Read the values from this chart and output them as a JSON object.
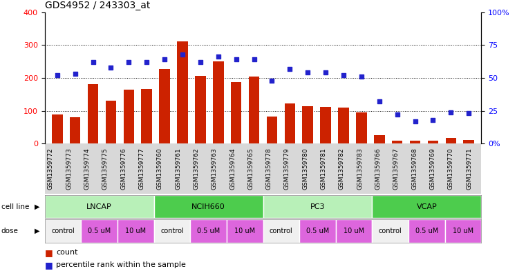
{
  "title": "GDS4952 / 243303_at",
  "samples": [
    "GSM1359772",
    "GSM1359773",
    "GSM1359774",
    "GSM1359775",
    "GSM1359776",
    "GSM1359777",
    "GSM1359760",
    "GSM1359761",
    "GSM1359762",
    "GSM1359763",
    "GSM1359764",
    "GSM1359765",
    "GSM1359778",
    "GSM1359779",
    "GSM1359780",
    "GSM1359781",
    "GSM1359782",
    "GSM1359783",
    "GSM1359766",
    "GSM1359767",
    "GSM1359768",
    "GSM1359769",
    "GSM1359770",
    "GSM1359771"
  ],
  "bar_values": [
    88,
    80,
    182,
    130,
    165,
    167,
    228,
    312,
    207,
    250,
    188,
    205,
    83,
    122,
    113,
    112,
    110,
    95,
    25,
    10,
    10,
    10,
    18,
    12
  ],
  "blue_values": [
    52,
    53,
    62,
    58,
    62,
    62,
    64,
    68,
    62,
    66,
    64,
    64,
    48,
    57,
    54,
    54,
    52,
    51,
    32,
    22,
    17,
    18,
    24,
    23
  ],
  "cell_lines": [
    {
      "label": "LNCAP",
      "start": 0,
      "end": 6,
      "color_light": "#b8f0b8",
      "color_dark": "#60d060"
    },
    {
      "label": "NCIH660",
      "start": 6,
      "end": 12,
      "color_light": "#60d060",
      "color_dark": "#60d060"
    },
    {
      "label": "PC3",
      "start": 12,
      "end": 18,
      "color_light": "#b8f0b8",
      "color_dark": "#60d060"
    },
    {
      "label": "VCAP",
      "start": 18,
      "end": 24,
      "color_light": "#60d060",
      "color_dark": "#60d060"
    }
  ],
  "dose_groups": [
    {
      "label": "control",
      "start": 0,
      "end": 2,
      "bg": "#f0f0f0"
    },
    {
      "label": "0.5 uM",
      "start": 2,
      "end": 4,
      "bg": "#e070e0"
    },
    {
      "label": "10 uM",
      "start": 4,
      "end": 6,
      "bg": "#e070e0"
    },
    {
      "label": "control",
      "start": 6,
      "end": 8,
      "bg": "#f0f0f0"
    },
    {
      "label": "0.5 uM",
      "start": 8,
      "end": 10,
      "bg": "#e070e0"
    },
    {
      "label": "10 uM",
      "start": 10,
      "end": 12,
      "bg": "#e070e0"
    },
    {
      "label": "control",
      "start": 12,
      "end": 14,
      "bg": "#f0f0f0"
    },
    {
      "label": "0.5 uM",
      "start": 14,
      "end": 16,
      "bg": "#e070e0"
    },
    {
      "label": "10 uM",
      "start": 16,
      "end": 18,
      "bg": "#e070e0"
    },
    {
      "label": "control",
      "start": 18,
      "end": 20,
      "bg": "#f0f0f0"
    },
    {
      "label": "0.5 uM",
      "start": 20,
      "end": 22,
      "bg": "#e070e0"
    },
    {
      "label": "10 uM",
      "start": 22,
      "end": 24,
      "bg": "#e070e0"
    }
  ],
  "bar_color": "#cc2200",
  "blue_color": "#2222cc",
  "ylim_left": [
    0,
    400
  ],
  "yticks_left": [
    0,
    100,
    200,
    300,
    400
  ],
  "yticks_right": [
    0,
    25,
    50,
    75,
    100
  ],
  "ytick_labels_right": [
    "0%",
    "25",
    "50",
    "75",
    "100%"
  ],
  "legend_count_label": "count",
  "legend_pct_label": "percentile rank within the sample",
  "background_color": "#ffffff",
  "tick_bg_color": "#d8d8d8"
}
